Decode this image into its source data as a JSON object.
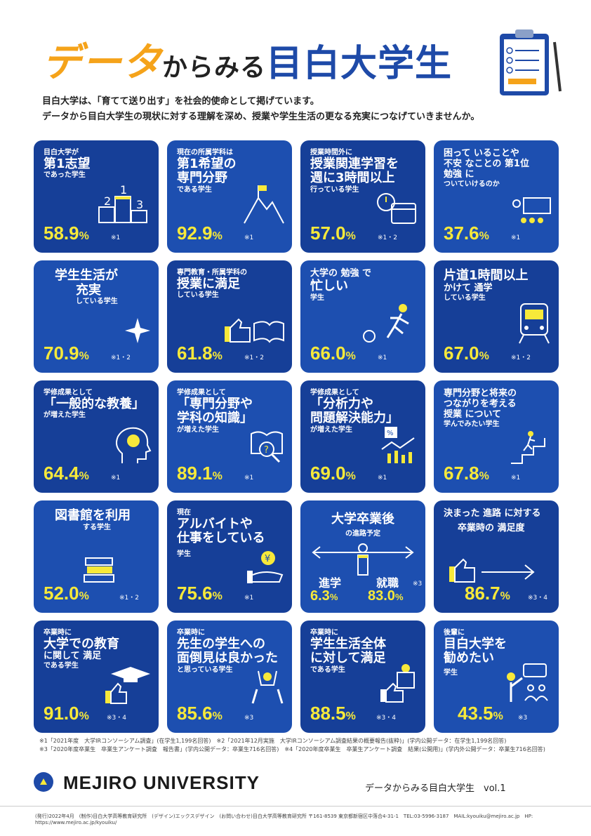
{
  "header": {
    "title_part1": "データ",
    "title_part2": "からみる",
    "title_part3": "目白大学生",
    "intro_line1": "目白大学は、「育てて送り出す」を社会的使命として掲げています。",
    "intro_line2": "データから目白大学生の現状に対する理解を深め、授業や学生生活の更なる充実につなげていきませんか。"
  },
  "cards": [
    {
      "l1": "目白大学が",
      "l2": "第1志望",
      "l3": "であった学生",
      "pct": "58.9",
      "note": "※1"
    },
    {
      "l1": "現在の所属学科は",
      "l2": "第1希望の",
      "l3": "専門分野",
      "l4": "である学生",
      "pct": "92.9",
      "note": "※1"
    },
    {
      "l1": "授業時間外に",
      "l2": "授業関連学習を",
      "l3": "週に3時間以上",
      "l4": "行っている学生",
      "pct": "57.0",
      "note": "※1・2"
    },
    {
      "l1": "困って いることや",
      "l2": "不安 なことの 第1位",
      "l3": "勉強 に",
      "l4": "ついていけるのか",
      "pct": "37.6",
      "note": "※1"
    },
    {
      "l1": "学生生活が",
      "l2": "充実",
      "l3": "している学生",
      "pct": "70.9",
      "note": "※1・2"
    },
    {
      "l1": "専門教育・所属学科の",
      "l2": "授業に満足",
      "l3": "している学生",
      "pct": "61.8",
      "note": "※1・2"
    },
    {
      "l1": "大学の 勉強 で",
      "l2": "忙しい",
      "l3": "学生",
      "pct": "66.0",
      "note": "※1"
    },
    {
      "l1": "片道1時間以上",
      "l2": "かけて 通学",
      "l3": "している学生",
      "pct": "67.0",
      "note": "※1・2"
    },
    {
      "l1": "学修成果として",
      "l2": "「一般的な教養」",
      "l3": "が増えた学生",
      "pct": "64.4",
      "note": "※1"
    },
    {
      "l1": "学修成果として",
      "l2": "「専門分野や",
      "l3": "学科の知識」",
      "l4": "が増えた学生",
      "pct": "89.1",
      "note": "※1"
    },
    {
      "l1": "学修成果として",
      "l2": "「分析力や",
      "l3": "問題解決能力」",
      "l4": "が増えた学生",
      "pct": "69.0",
      "note": "※1"
    },
    {
      "l1": "専門分野と将来の",
      "l2": "つながりを考える",
      "l3": "授業 について",
      "l4": "学んでみたい学生",
      "pct": "67.8",
      "note": "※1"
    },
    {
      "l1": "図書館を利用",
      "l2": "する学生",
      "pct": "52.0",
      "note": "※1・2"
    },
    {
      "l1": "現在",
      "l2": "アルバイトや",
      "l3": "仕事をしている",
      "l4": "学生",
      "pct": "75.6",
      "note": "※1"
    },
    {
      "l1": "大学卒業後",
      "l2": "の進路予定",
      "l3": "進学",
      "l4": "就職",
      "pct": "6.3",
      "pct2": "83.0",
      "note": "※3"
    },
    {
      "l1": "決まった 進路 に対する",
      "l2": "卒業時の 満足度",
      "pct": "86.7",
      "note": "※3・4"
    },
    {
      "l1": "卒業時に",
      "l2": "大学での教育",
      "l3": "に関して 満足",
      "l4": "である学生",
      "pct": "91.0",
      "note": "※3・4"
    },
    {
      "l1": "卒業時に",
      "l2": "先生の学生への",
      "l3": "面倒見は良かった",
      "l4": "と思っている学生",
      "pct": "85.6",
      "note": "※3"
    },
    {
      "l1": "卒業時に",
      "l2": "学生生活全体",
      "l3": "に対して満足",
      "l4": "である学生",
      "pct": "88.5",
      "note": "※3・4"
    },
    {
      "l1": "後輩に",
      "l2": "目白大学を",
      "l3": "勧めたい",
      "l4": "学生",
      "pct": "43.5",
      "note": "※3"
    }
  ],
  "percent_sign": "%",
  "footnotes": {
    "n1": "※1「2021年度　大学IRコンソーシアム調査」(在学生1,199名回答)",
    "n2": "※2「2021年12月実施　大学IRコンソーシアム調査結果の概要報告(抜粋)」(学内公開データ：在学生1,199名回答)",
    "n3": "※3「2020年度卒業生　卒業生アンケート調査　報告書」(学内公開データ：卒業生716名回答)",
    "n4": "※4「2020年度卒業生　卒業生アンケート調査　結果(公開用)」(学内外公開データ：卒業生716名回答)"
  },
  "footer": {
    "university": "MEJIRO UNIVERSITY",
    "series": "データからみる目白大学生　vol.1",
    "credits": "(発行)2022年4月　(制作)目白大学高等教育研究所　(デザイン)エックスデザイン　(お問い合わせ)目白大学高等教育研究所 〒161-8539 東京都新宿区中落合4-31-1　TEL:03-5996-3187　MAIL:kyouiku@mejiro.ac.jp　HP: https://www.mejiro.ac.jp/kyouiku/"
  },
  "colors": {
    "card": "#1d4fb0",
    "accent": "#f7e93a",
    "title_orange": "#f5a31a"
  }
}
